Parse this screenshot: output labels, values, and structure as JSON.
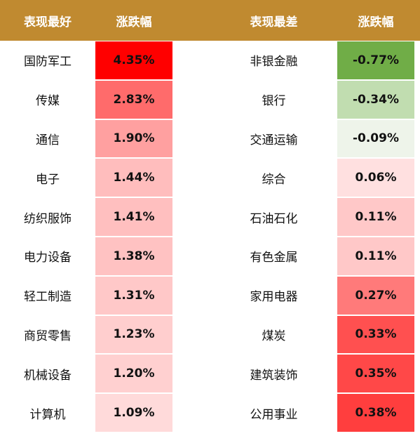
{
  "table": {
    "header": [
      "表现最好",
      "涨跌幅",
      "表现最差",
      "涨跌幅"
    ],
    "header_color": "#c08a30",
    "rows": [
      [
        "国防军工",
        "4.35%",
        "非银金融",
        "-0.77%"
      ],
      [
        "传媒",
        "2.83%",
        "银行",
        "-0.34%"
      ],
      [
        "通信",
        "1.90%",
        "交通运输",
        "-0.09%"
      ],
      [
        "电子",
        "1.44%",
        "综合",
        "0.06%"
      ],
      [
        "纺织服饰",
        "1.41%",
        "石油石化",
        "0.11%"
      ],
      [
        "电力设备",
        "1.38%",
        "有色金属",
        "0.11%"
      ],
      [
        "轻工制造",
        "1.31%",
        "家用电器",
        "0.27%"
      ],
      [
        "商贸零售",
        "1.23%",
        "煤炭",
        "0.33%"
      ],
      [
        "机械设备",
        "1.20%",
        "建筑装饰",
        "0.35%"
      ],
      [
        "计算机",
        "1.09%",
        "公用事业",
        "0.38%"
      ]
    ],
    "cell_colors": [
      [
        "#ff0000",
        "#70ad47"
      ],
      [
        "#ff6b6b",
        "#c1ddb0"
      ],
      [
        "#ffa0a0",
        "#eef4ea"
      ],
      [
        "#ffbdbd",
        "#ffe0e0"
      ],
      [
        "#ffbfbf",
        "#ffc8c8"
      ],
      [
        "#ffc2c2",
        "#ffc8c8"
      ],
      [
        "#ffc8c8",
        "#ff7a7a"
      ],
      [
        "#ffcece",
        "#ff5050"
      ],
      [
        "#ffd0d0",
        "#ff4848"
      ],
      [
        "#ffdada",
        "#ff3e3e"
      ]
    ]
  }
}
